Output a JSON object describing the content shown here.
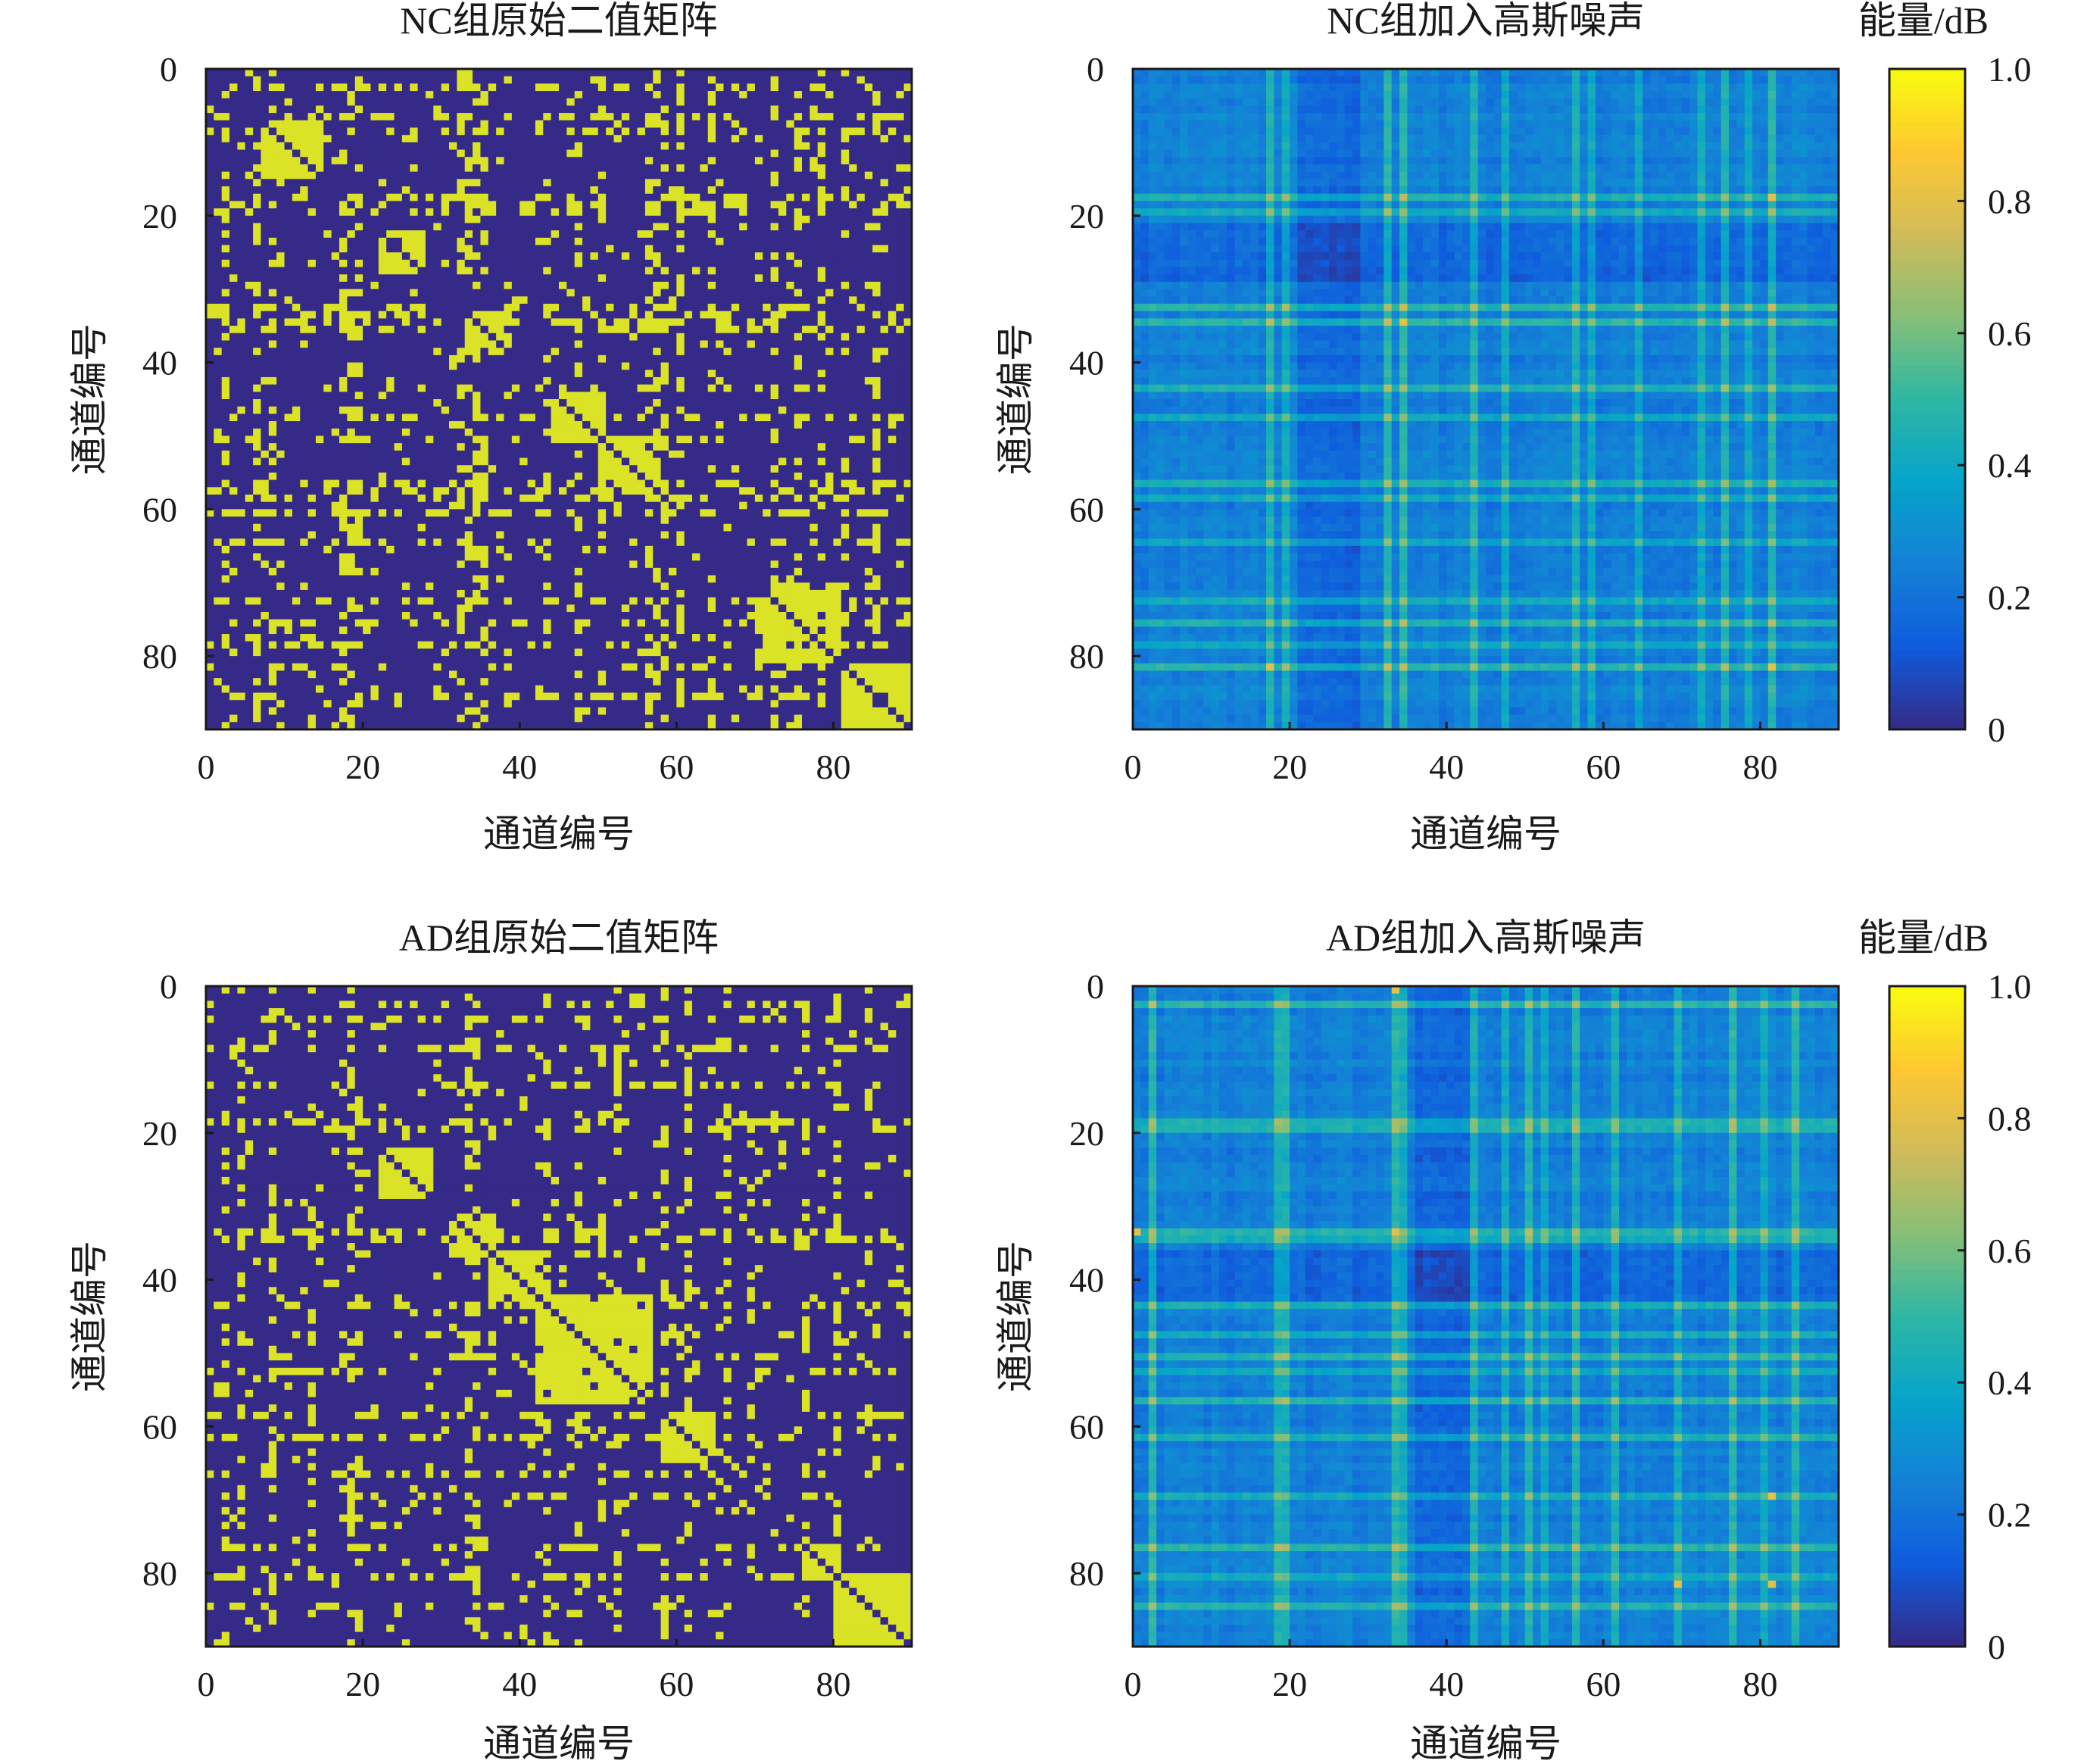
{
  "figure_unit_label": "能量/dB",
  "colors": {
    "binary_low": "#352a87",
    "binary_high": "#dbe327",
    "parula_stops": [
      "#352a87",
      "#0f5cdd",
      "#1481d6",
      "#06a4ca",
      "#2eb7a4",
      "#87bf77",
      "#d1bb59",
      "#fec832",
      "#f9fb0e"
    ]
  },
  "chart_data": [
    {
      "type": "heatmap",
      "id": "nc-binary",
      "title": "NC组原始二值矩阵",
      "xlabel": "通道编号",
      "ylabel": "通道编号",
      "size": 90,
      "xlim": [
        0,
        90
      ],
      "ylim": [
        0,
        90
      ],
      "x_ticks": [
        0,
        20,
        40,
        60,
        80
      ],
      "y_ticks": [
        0,
        20,
        40,
        60,
        80
      ],
      "value_range": [
        0,
        1
      ],
      "values_note": "approximate binary connectivity matrix, 90×90, symmetric with filled diagonal blocks",
      "dense_channels": [
        2,
        6,
        8,
        17,
        18,
        19,
        32,
        33,
        34,
        35,
        43,
        47,
        50,
        56,
        57,
        58,
        60,
        64,
        72,
        75,
        78,
        81,
        85
      ],
      "diagonal_blocks": [
        [
          7,
          14
        ],
        [
          17,
          19
        ],
        [
          22,
          27
        ],
        [
          33,
          38
        ],
        [
          44,
          50
        ],
        [
          50,
          57
        ],
        [
          70,
          80
        ],
        [
          81,
          89
        ]
      ]
    },
    {
      "type": "heatmap",
      "id": "nc-noise",
      "title": "NC组加入高斯噪声",
      "xlabel": "通道编号",
      "ylabel": "通道编号",
      "size": 90,
      "xlim": [
        0,
        90
      ],
      "ylim": [
        0,
        90
      ],
      "x_ticks": [
        0,
        20,
        40,
        60,
        80
      ],
      "y_ticks": [
        0,
        20,
        40,
        60,
        80
      ],
      "colorbar": {
        "label": "能量/dB",
        "range": [
          0,
          1.0
        ],
        "ticks": [
          "1.0",
          "0.8",
          "0.6",
          "0.4",
          "0.2",
          "0"
        ]
      },
      "values_note": "approximate connection strength with added Gaussian noise, peaks ≈0.8",
      "strong_channels": [
        17,
        19,
        32,
        34,
        43,
        47,
        56,
        58,
        64,
        72,
        75,
        78,
        81
      ],
      "weak_band": [
        21,
        28
      ],
      "peak_cells": [
        [
          81,
          81
        ],
        [
          34,
          34
        ],
        [
          17,
          81
        ],
        [
          81,
          17
        ]
      ]
    },
    {
      "type": "heatmap",
      "id": "ad-binary",
      "title": "AD组原始二值矩阵",
      "xlabel": "通道编号",
      "ylabel": "通道编号",
      "size": 90,
      "xlim": [
        0,
        90
      ],
      "ylim": [
        0,
        90
      ],
      "x_ticks": [
        0,
        20,
        40,
        60,
        80
      ],
      "y_ticks": [
        0,
        20,
        40,
        60,
        80
      ],
      "value_range": [
        0,
        1
      ],
      "values_note": "approximate binary connectivity matrix, 90×90, symmetric with filled diagonal blocks",
      "dense_channels": [
        2,
        4,
        8,
        13,
        18,
        19,
        33,
        34,
        43,
        47,
        50,
        52,
        58,
        61,
        66,
        69,
        76,
        80,
        84
      ],
      "diagonal_blocks": [
        [
          22,
          28
        ],
        [
          31,
          36
        ],
        [
          36,
          42
        ],
        [
          42,
          56
        ],
        [
          58,
          64
        ],
        [
          76,
          80
        ],
        [
          80,
          89
        ]
      ]
    },
    {
      "type": "heatmap",
      "id": "ad-noise",
      "title": "AD组加入高斯噪声",
      "xlabel": "通道编号",
      "ylabel": "通道编号",
      "size": 90,
      "xlim": [
        0,
        90
      ],
      "ylim": [
        0,
        90
      ],
      "x_ticks": [
        0,
        20,
        40,
        60,
        80
      ],
      "y_ticks": [
        0,
        20,
        40,
        60,
        80
      ],
      "colorbar": {
        "label": "能量/dB",
        "range": [
          0,
          1.0
        ],
        "ticks": [
          "1.0",
          "0.8",
          "0.6",
          "0.4",
          "0.2",
          "0"
        ]
      },
      "values_note": "approximate connection strength with added Gaussian noise, peaks ≈0.8",
      "strong_channels": [
        2,
        18,
        19,
        33,
        34,
        43,
        47,
        50,
        52,
        56,
        61,
        69,
        76,
        80,
        84
      ],
      "weak_band": [
        36,
        42
      ],
      "peak_cells": [
        [
          33,
          33
        ],
        [
          81,
          81
        ],
        [
          0,
          33
        ],
        [
          81,
          69
        ]
      ]
    }
  ]
}
